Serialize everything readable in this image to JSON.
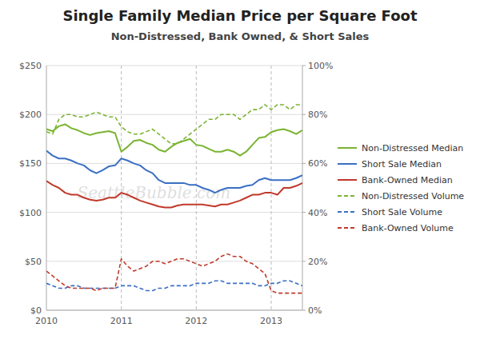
{
  "chart_data": {
    "type": "line",
    "title": "Single Family Median Price per Square Foot",
    "subtitle": "Non-Distressed, Bank Owned, & Short Sales",
    "annotations": [
      "SeattleBubble.com"
    ],
    "categories": [
      "2010",
      null,
      null,
      null,
      null,
      null,
      null,
      null,
      null,
      null,
      null,
      null,
      "2011",
      null,
      null,
      null,
      null,
      null,
      null,
      null,
      null,
      null,
      null,
      null,
      "2012",
      null,
      null,
      null,
      null,
      null,
      null,
      null,
      null,
      null,
      null,
      null,
      "2013",
      null,
      null,
      null,
      null,
      null
    ],
    "ylim": [
      0,
      250
    ],
    "yticks": [
      {
        "value": 0,
        "label": "$0"
      },
      {
        "value": 50,
        "label": "$50"
      },
      {
        "value": 100,
        "label": "$100"
      },
      {
        "value": 150,
        "label": "$150"
      },
      {
        "value": 200,
        "label": "$200"
      },
      {
        "value": 250,
        "label": "$250"
      }
    ],
    "y2lim": [
      0,
      1.0
    ],
    "y2ticks": [
      {
        "value": 0.0,
        "label": "0%"
      },
      {
        "value": 0.2,
        "label": "20%"
      },
      {
        "value": 0.4,
        "label": "40%"
      },
      {
        "value": 0.6,
        "label": "60%"
      },
      {
        "value": 0.8,
        "label": "80%"
      },
      {
        "value": 1.0,
        "label": "100%"
      }
    ],
    "grid": true,
    "legend": "right",
    "series": [
      {
        "name": "Non-Distressed Median",
        "color": "#7ab432",
        "line_style": "solid",
        "values": [
          185,
          183,
          188,
          190,
          186,
          184,
          181,
          179,
          181,
          182,
          183,
          181,
          162,
          167,
          173,
          174,
          171,
          169,
          164,
          162,
          167,
          171,
          173,
          175,
          169,
          168,
          165,
          162,
          162,
          164,
          162,
          158,
          162,
          169,
          176,
          177,
          182,
          184,
          185,
          183,
          180,
          184
        ]
      },
      {
        "name": "Short Sale Median",
        "color": "#3a6fc4",
        "line_style": "solid",
        "values": [
          163,
          158,
          155,
          155,
          153,
          150,
          148,
          143,
          140,
          143,
          147,
          148,
          155,
          153,
          150,
          148,
          143,
          140,
          133,
          130,
          130,
          130,
          130,
          128,
          128,
          125,
          123,
          120,
          123,
          125,
          125,
          125,
          127,
          128,
          133,
          135,
          133,
          133,
          133,
          133,
          135,
          138
        ]
      },
      {
        "name": "Bank-Owned Median",
        "color": "#c0392b",
        "line_style": "solid",
        "values": [
          132,
          128,
          125,
          120,
          118,
          118,
          115,
          113,
          112,
          113,
          115,
          115,
          120,
          118,
          115,
          112,
          110,
          108,
          106,
          105,
          105,
          107,
          108,
          108,
          108,
          108,
          107,
          106,
          108,
          108,
          110,
          112,
          115,
          118,
          118,
          120,
          120,
          118,
          125,
          125,
          127,
          130
        ]
      },
      {
        "name": "Non-Distressed Volume",
        "color": "#7ab432",
        "line_style": "dashed",
        "axis": "y2",
        "values": [
          0.73,
          0.72,
          0.78,
          0.8,
          0.8,
          0.79,
          0.79,
          0.8,
          0.81,
          0.8,
          0.79,
          0.79,
          0.75,
          0.73,
          0.72,
          0.72,
          0.73,
          0.74,
          0.72,
          0.7,
          0.68,
          0.68,
          0.7,
          0.72,
          0.74,
          0.76,
          0.78,
          0.78,
          0.8,
          0.8,
          0.8,
          0.78,
          0.8,
          0.82,
          0.82,
          0.84,
          0.82,
          0.84,
          0.84,
          0.82,
          0.84,
          0.84
        ]
      },
      {
        "name": "Short Sale Volume",
        "color": "#3a6fc4",
        "line_style": "dashed",
        "axis": "y2",
        "values": [
          0.11,
          0.1,
          0.09,
          0.09,
          0.1,
          0.1,
          0.09,
          0.09,
          0.09,
          0.09,
          0.09,
          0.09,
          0.1,
          0.1,
          0.1,
          0.09,
          0.08,
          0.08,
          0.09,
          0.09,
          0.1,
          0.1,
          0.1,
          0.1,
          0.11,
          0.11,
          0.11,
          0.12,
          0.12,
          0.11,
          0.11,
          0.11,
          0.11,
          0.11,
          0.1,
          0.1,
          0.11,
          0.11,
          0.12,
          0.12,
          0.11,
          0.1
        ]
      },
      {
        "name": "Bank-Owned Volume",
        "color": "#c0392b",
        "line_style": "dashed",
        "axis": "y2",
        "values": [
          0.16,
          0.14,
          0.12,
          0.1,
          0.09,
          0.09,
          0.09,
          0.09,
          0.08,
          0.09,
          0.09,
          0.09,
          0.21,
          0.18,
          0.16,
          0.17,
          0.18,
          0.2,
          0.2,
          0.19,
          0.2,
          0.21,
          0.21,
          0.2,
          0.19,
          0.18,
          0.19,
          0.2,
          0.22,
          0.23,
          0.22,
          0.22,
          0.2,
          0.19,
          0.17,
          0.15,
          0.08,
          0.07,
          0.07,
          0.07,
          0.07,
          0.07
        ]
      }
    ]
  }
}
